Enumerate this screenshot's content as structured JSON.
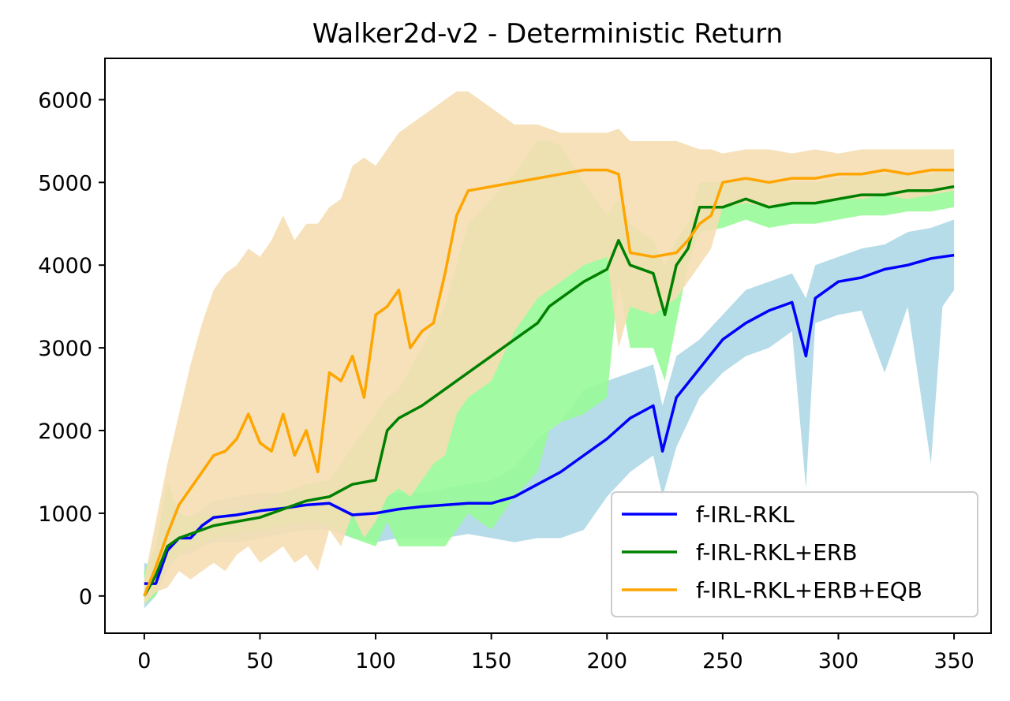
{
  "chart_data": {
    "type": "line",
    "title": "Walker2d-v2 - Deterministic Return",
    "xlabel": "",
    "ylabel": "",
    "xlim": [
      -17,
      366
    ],
    "ylim": [
      -450,
      6500
    ],
    "xticks": [
      0,
      50,
      100,
      150,
      200,
      250,
      300,
      350
    ],
    "yticks": [
      0,
      1000,
      2000,
      3000,
      4000,
      5000,
      6000
    ],
    "grid": false,
    "legend_position": "lower-right",
    "series": [
      {
        "name": "f-IRL-RKL",
        "color": "#0000ff",
        "band_color": "#add8e6",
        "x": [
          0,
          5,
          10,
          15,
          20,
          25,
          30,
          40,
          50,
          60,
          70,
          80,
          90,
          100,
          110,
          120,
          130,
          140,
          150,
          160,
          170,
          180,
          190,
          200,
          210,
          220,
          224,
          230,
          240,
          250,
          260,
          270,
          280,
          286,
          290,
          300,
          310,
          320,
          330,
          340,
          345,
          350
        ],
        "mean": [
          150,
          150,
          550,
          700,
          700,
          850,
          950,
          980,
          1030,
          1060,
          1100,
          1120,
          980,
          1000,
          1050,
          1080,
          1100,
          1120,
          1120,
          1200,
          1350,
          1500,
          1700,
          1900,
          2150,
          2300,
          1750,
          2400,
          2750,
          3100,
          3300,
          3450,
          3550,
          2900,
          3600,
          3800,
          3850,
          3950,
          4000,
          4080,
          4100,
          4120
        ],
        "lower": [
          -150,
          0,
          300,
          500,
          500,
          600,
          650,
          650,
          700,
          750,
          800,
          800,
          700,
          650,
          700,
          700,
          700,
          750,
          700,
          650,
          700,
          700,
          800,
          1200,
          1500,
          1700,
          1200,
          1800,
          2400,
          2700,
          2900,
          3000,
          3200,
          1300,
          3300,
          3400,
          3450,
          2700,
          3500,
          1600,
          3500,
          3700
        ],
        "upper": [
          400,
          350,
          800,
          950,
          950,
          1050,
          1150,
          1200,
          1250,
          1250,
          1250,
          1250,
          1150,
          1200,
          1250,
          1250,
          1300,
          1350,
          1400,
          1550,
          1900,
          2100,
          2500,
          2600,
          2700,
          2800,
          2300,
          2900,
          3100,
          3400,
          3700,
          3800,
          3900,
          3600,
          4000,
          4100,
          4200,
          4250,
          4400,
          4450,
          4500,
          4550
        ]
      },
      {
        "name": "f-IRL-RKL+ERB",
        "color": "#008000",
        "band_color": "#98fb98",
        "x": [
          0,
          5,
          10,
          15,
          20,
          30,
          40,
          50,
          60,
          70,
          80,
          90,
          100,
          105,
          110,
          120,
          130,
          140,
          150,
          160,
          170,
          175,
          180,
          190,
          200,
          205,
          210,
          220,
          225,
          230,
          235,
          240,
          250,
          260,
          270,
          280,
          290,
          300,
          310,
          320,
          330,
          340,
          350
        ],
        "mean": [
          0,
          250,
          600,
          700,
          750,
          850,
          900,
          950,
          1050,
          1150,
          1200,
          1350,
          1400,
          2000,
          2150,
          2300,
          2500,
          2700,
          2900,
          3100,
          3300,
          3500,
          3600,
          3800,
          3950,
          4300,
          4000,
          3900,
          3400,
          4000,
          4200,
          4700,
          4700,
          4800,
          4700,
          4750,
          4750,
          4800,
          4850,
          4850,
          4900,
          4900,
          4950
        ],
        "lower": [
          -100,
          0,
          400,
          500,
          600,
          700,
          750,
          800,
          850,
          900,
          850,
          700,
          600,
          900,
          600,
          600,
          600,
          1000,
          800,
          1200,
          1500,
          2000,
          2100,
          2200,
          2400,
          3800,
          3000,
          3000,
          2600,
          3300,
          4000,
          4400,
          4450,
          4550,
          4450,
          4500,
          4500,
          4550,
          4600,
          4600,
          4650,
          4650,
          4700
        ],
        "upper": [
          300,
          600,
          1400,
          1000,
          950,
          1000,
          1050,
          1100,
          1250,
          1350,
          1400,
          1800,
          2200,
          2400,
          2500,
          3000,
          3500,
          4500,
          4800,
          5100,
          5500,
          5500,
          5450,
          5000,
          4600,
          4800,
          4500,
          4300,
          4000,
          4300,
          4500,
          5000,
          5000,
          5050,
          5000,
          5000,
          5000,
          5050,
          5100,
          5100,
          5100,
          5100,
          5150
        ]
      },
      {
        "name": "f-IRL-RKL+ERB+EQB",
        "color": "#ffa500",
        "band_color": "#f5deb3",
        "x": [
          0,
          5,
          10,
          15,
          20,
          25,
          30,
          35,
          40,
          45,
          50,
          55,
          60,
          65,
          70,
          75,
          80,
          85,
          90,
          95,
          100,
          105,
          110,
          115,
          120,
          125,
          130,
          135,
          140,
          150,
          160,
          170,
          180,
          190,
          200,
          205,
          210,
          220,
          230,
          235,
          240,
          245,
          250,
          260,
          270,
          280,
          290,
          300,
          310,
          320,
          330,
          340,
          350
        ],
        "mean": [
          0,
          350,
          750,
          1100,
          1300,
          1500,
          1700,
          1750,
          1900,
          2200,
          1850,
          1750,
          2200,
          1700,
          2000,
          1500,
          2700,
          2600,
          2900,
          2400,
          3400,
          3500,
          3700,
          3000,
          3200,
          3300,
          3900,
          4600,
          4900,
          4950,
          5000,
          5050,
          5100,
          5150,
          5150,
          5100,
          4150,
          4100,
          4150,
          4300,
          4500,
          4600,
          5000,
          5050,
          5000,
          5050,
          5050,
          5100,
          5100,
          5150,
          5100,
          5150,
          5150
        ],
        "lower": [
          -100,
          50,
          100,
          300,
          200,
          300,
          400,
          300,
          500,
          600,
          400,
          500,
          600,
          400,
          500,
          300,
          800,
          600,
          1000,
          700,
          900,
          1200,
          1300,
          1200,
          1400,
          1600,
          1700,
          2200,
          2400,
          2600,
          3200,
          3600,
          3800,
          4000,
          4100,
          3000,
          3500,
          3400,
          3600,
          3800,
          4000,
          4200,
          4700,
          4750,
          4700,
          4750,
          4750,
          4800,
          4800,
          4850,
          4800,
          4850,
          4900
        ],
        "upper": [
          200,
          900,
          1600,
          2200,
          2800,
          3300,
          3700,
          3900,
          4000,
          4200,
          4100,
          4300,
          4600,
          4300,
          4500,
          4500,
          4700,
          4800,
          5200,
          5300,
          5200,
          5400,
          5600,
          5700,
          5800,
          5900,
          6000,
          6100,
          6100,
          5900,
          5700,
          5700,
          5600,
          5600,
          5600,
          5650,
          5500,
          5500,
          5500,
          5450,
          5400,
          5400,
          5350,
          5400,
          5400,
          5350,
          5400,
          5350,
          5400,
          5400,
          5400,
          5400,
          5400
        ]
      }
    ]
  }
}
